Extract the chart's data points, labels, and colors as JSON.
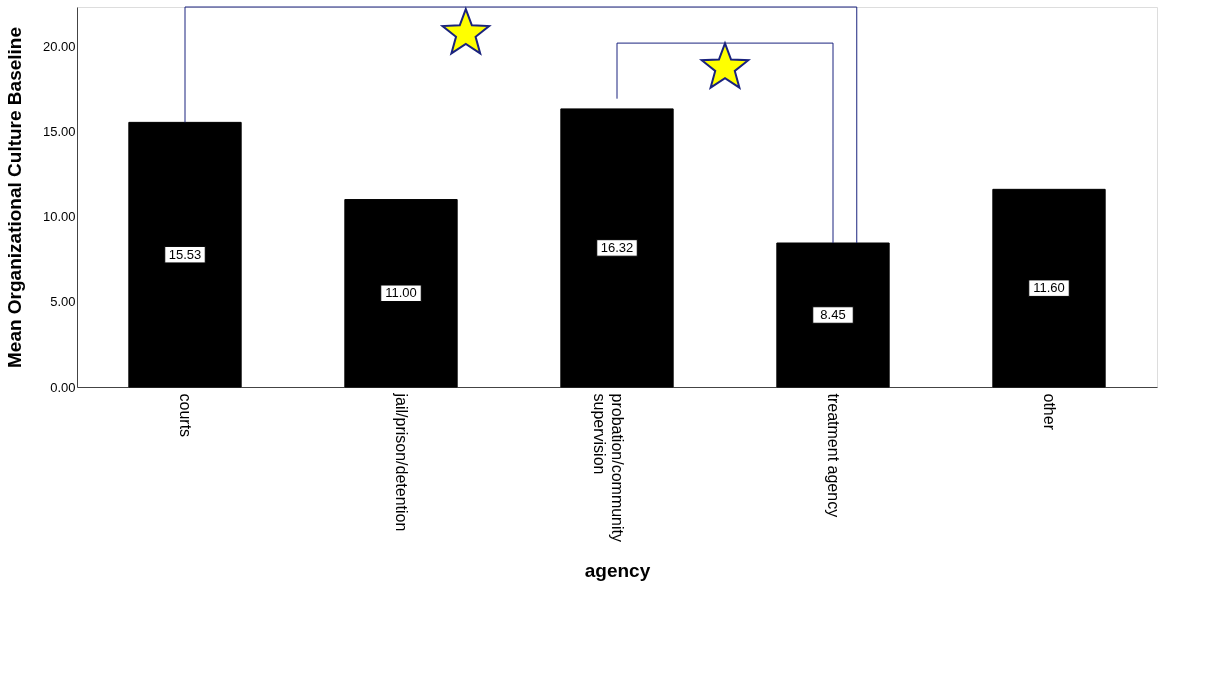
{
  "chart_data": {
    "type": "bar",
    "xlabel": "agency",
    "ylabel": "Mean Organizational Culture Baseline",
    "categories": [
      "courts",
      "jail/prison/detention",
      "probation/community supervision",
      "treatment agency",
      "other"
    ],
    "values": [
      15.53,
      11.0,
      16.32,
      8.45,
      11.6
    ],
    "value_labels": [
      "15.53",
      "11.00",
      "16.32",
      "8.45",
      "11.60"
    ],
    "color": "#000000",
    "ylim": [
      0,
      22.3
    ],
    "yticks": [
      {
        "value": 0,
        "label": "0.00"
      },
      {
        "value": 5,
        "label": "5.00"
      },
      {
        "value": 10,
        "label": "10.00"
      },
      {
        "value": 15,
        "label": "15.00"
      },
      {
        "value": 20,
        "label": "20.00"
      }
    ],
    "grid": false
  }
}
